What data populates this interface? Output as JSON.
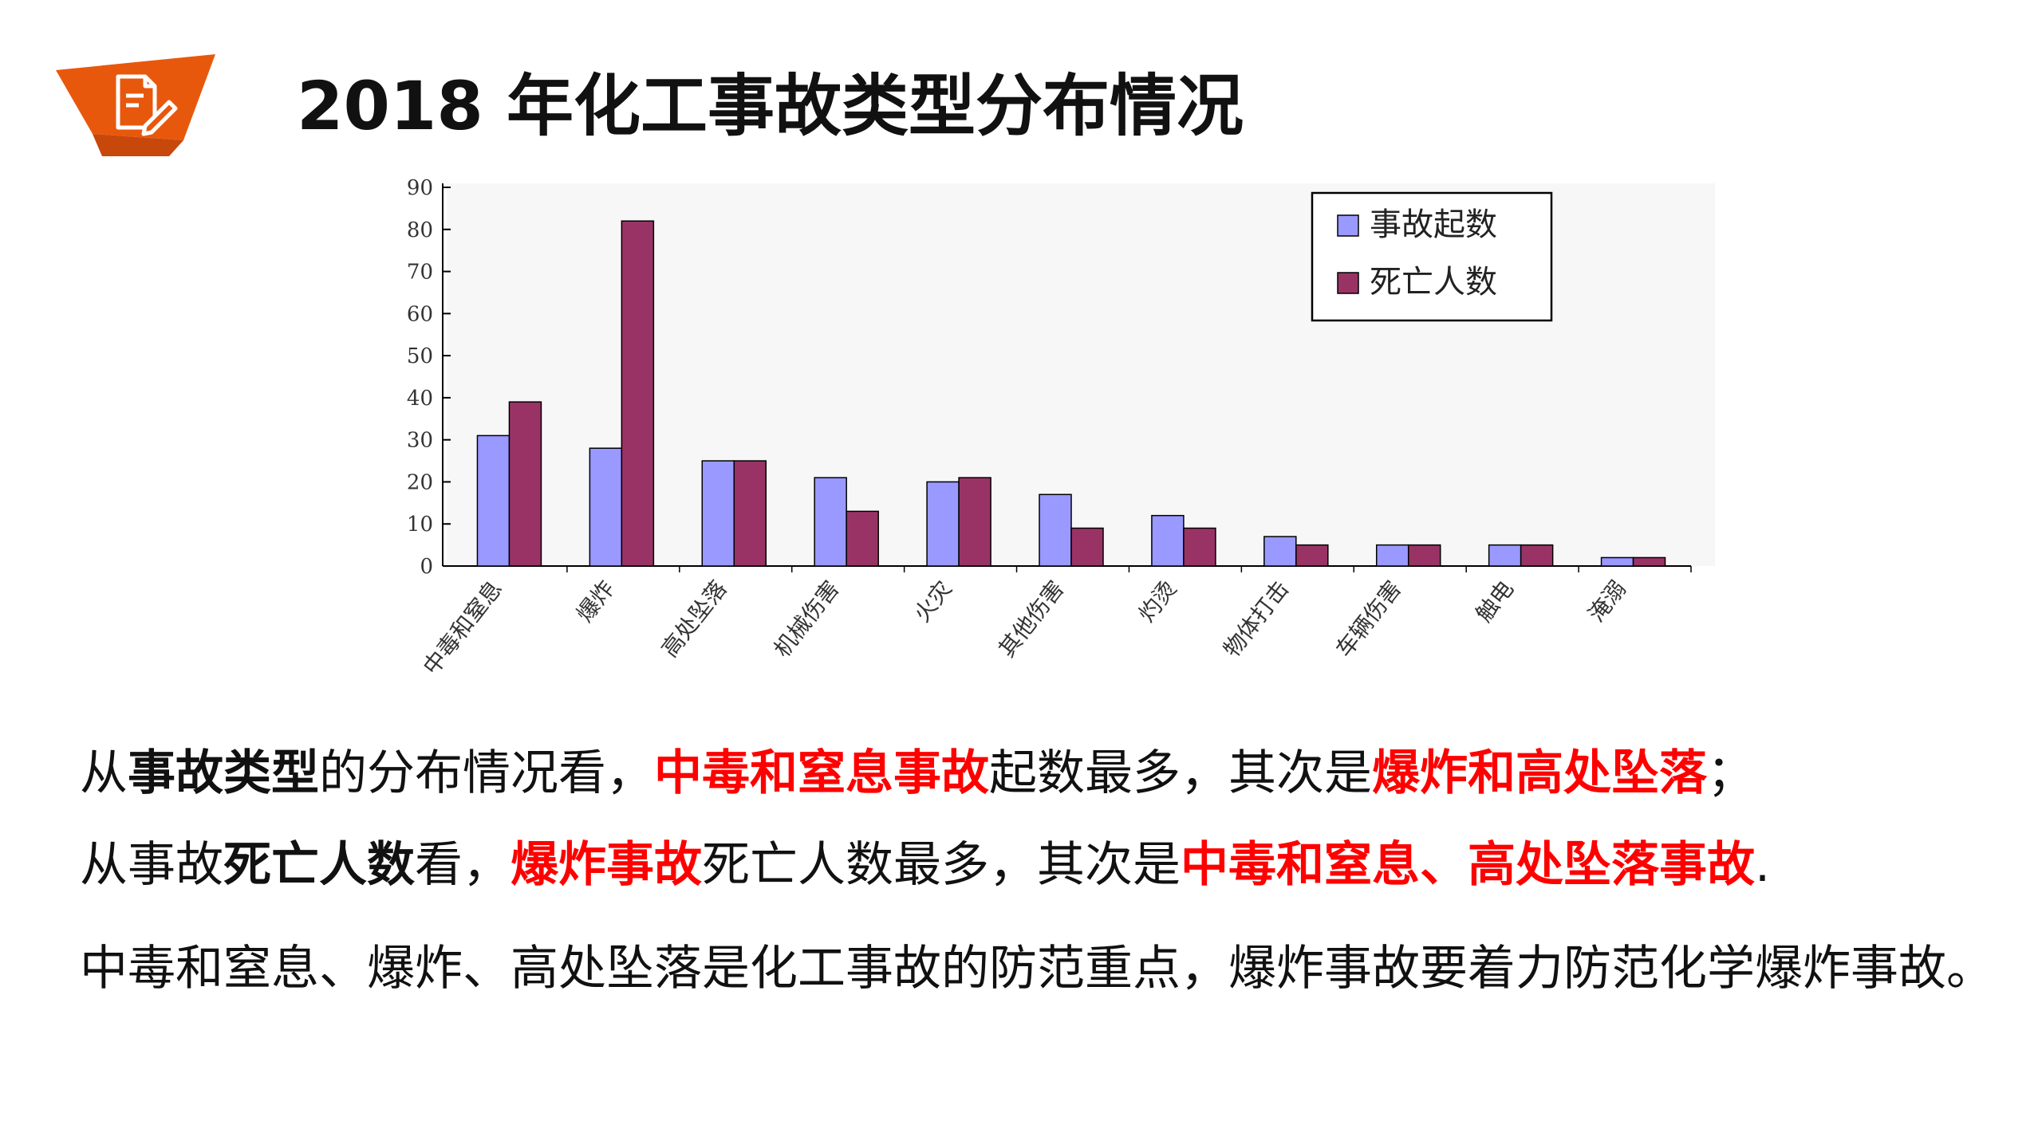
{
  "slide": {
    "badge_icon": "document-pencil-icon",
    "accent_color": "#e8580c",
    "title": "2018 年化工事故类型分布情况"
  },
  "chart_data": {
    "type": "bar",
    "categories": [
      "中毒和窒息",
      "爆炸",
      "高处坠落",
      "机械伤害",
      "火灾",
      "其他伤害",
      "灼烫",
      "物体打击",
      "车辆伤害",
      "触电",
      "淹溺"
    ],
    "series": [
      {
        "name": "事故起数",
        "values": [
          31,
          28,
          25,
          21,
          20,
          17,
          12,
          7,
          5,
          5,
          2
        ],
        "color": "#9999ff"
      },
      {
        "name": "死亡人数",
        "values": [
          39,
          82,
          25,
          13,
          21,
          9,
          9,
          5,
          5,
          5,
          2
        ],
        "color": "#993366"
      }
    ],
    "y_ticks": [
      "0",
      "10",
      "20",
      "30",
      "40",
      "50",
      "60",
      "70",
      "80",
      "90"
    ],
    "ylim": [
      0,
      90
    ],
    "title": "",
    "xlabel": "",
    "ylabel": "",
    "legend_position": "top-right",
    "grid": false
  },
  "text": {
    "p1": [
      "从",
      "事故类型",
      "的分布情况看，",
      "中毒和窒息事故",
      "起数最多，其次是",
      "爆炸和高处坠落",
      "；"
    ],
    "p2": [
      "从事故",
      "死亡人数",
      "看，",
      "爆炸事故",
      "死亡人数最多，其次是",
      "中毒和窒息、高处坠落事故",
      "."
    ],
    "p3": "中毒和窒息、爆炸、高处坠落是化工事故的防范重点，爆炸事故要着力防范化学爆炸事故。"
  }
}
